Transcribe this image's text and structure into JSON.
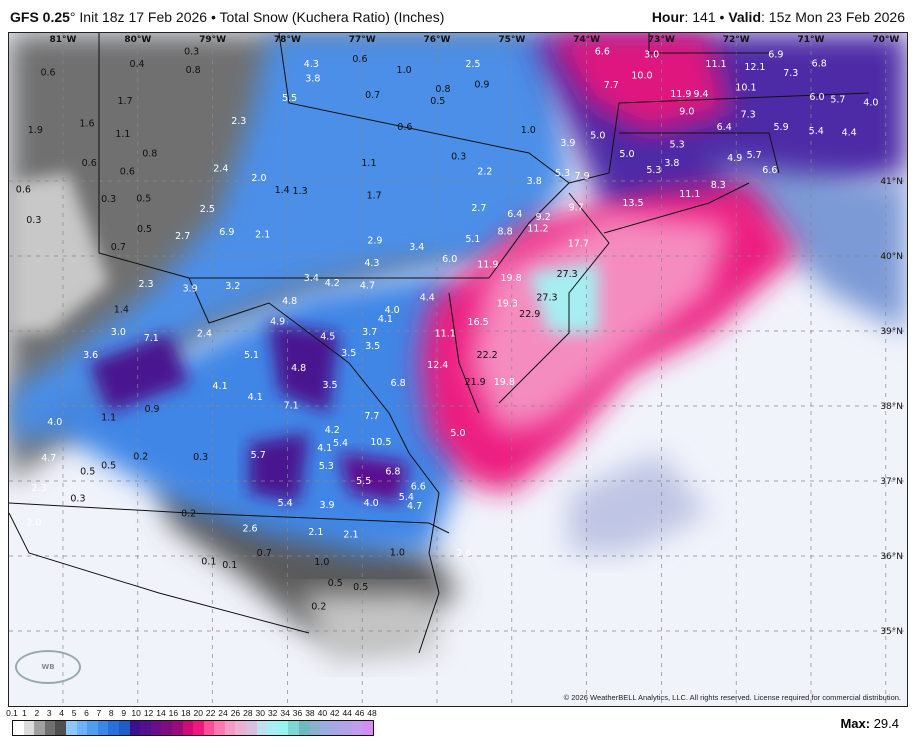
{
  "header": {
    "model": "GFS 0.25",
    "init": "° Init 18z 17 Feb 2026 • Total Snow (Kuchera Ratio) (Inches)",
    "hour_label": "Hour",
    "hour": ": 141 • ",
    "valid_label": "Valid",
    "valid": ": 15z Mon 23 Feb 2026"
  },
  "copyright": "© 2026 WeatherBELL Analytics, LLC. All rights reserved. License required for commercial distribution.",
  "logo": "WEATHERBELL",
  "max_label": "Max:",
  "max_value": "29.4",
  "colorbar": {
    "ticks": [
      "0.1",
      "1",
      "2",
      "3",
      "4",
      "5",
      "6",
      "7",
      "8",
      "9",
      "10",
      "12",
      "14",
      "16",
      "18",
      "20",
      "22",
      "24",
      "26",
      "28",
      "30",
      "32",
      "34",
      "36",
      "38",
      "40",
      "42",
      "44",
      "46",
      "48"
    ],
    "colors": [
      "#ffffff",
      "#dcdcdc",
      "#a0a0a0",
      "#707070",
      "#505050",
      "#8ec8f8",
      "#6fb2f5",
      "#4f9ef0",
      "#3a86ea",
      "#2a6fe0",
      "#1f5bc9",
      "#3d0f8f",
      "#52108f",
      "#6a0f8a",
      "#7e0d7f",
      "#9a0a7a",
      "#d00a78",
      "#f0157f",
      "#ff4d98",
      "#ff78b0",
      "#f59ac2",
      "#eeb0d0",
      "#d8bfe0",
      "#bfe0ec",
      "#a8eef4",
      "#96f6ef",
      "#7ed8d2",
      "#72b8c0",
      "#8cb0d0",
      "#9caee0",
      "#a8a6e4",
      "#b4a2e6",
      "#c39ceb",
      "#d28cf3"
    ]
  },
  "lon_labels": [
    "81°W",
    "80°W",
    "79°W",
    "78°W",
    "77°W",
    "76°W",
    "75°W",
    "74°W",
    "73°W",
    "72°W",
    "71°W",
    "70°W"
  ],
  "lat_labels": [
    "41°N",
    "40°N",
    "39°N",
    "38°N",
    "37°N",
    "36°N",
    "35°N"
  ],
  "snow_labels": [
    {
      "v": "0.6",
      "lon": 81.2,
      "lat": 42.45
    },
    {
      "v": "0.4",
      "lon": 80.01,
      "lat": 42.56
    },
    {
      "v": "0.3",
      "lon": 79.28,
      "lat": 42.73
    },
    {
      "v": "0.8",
      "lon": 79.26,
      "lat": 42.48
    },
    {
      "v": "4.3",
      "lon": 77.68,
      "lat": 42.56
    },
    {
      "v": "3.8",
      "lon": 77.66,
      "lat": 42.37
    },
    {
      "v": "0.6",
      "lon": 77.03,
      "lat": 42.63
    },
    {
      "v": "1.0",
      "lon": 76.44,
      "lat": 42.48
    },
    {
      "v": "2.5",
      "lon": 75.52,
      "lat": 42.56
    },
    {
      "v": "0.9",
      "lon": 75.4,
      "lat": 42.29
    },
    {
      "v": "0.8",
      "lon": 75.92,
      "lat": 42.23
    },
    {
      "v": "0.5",
      "lon": 75.99,
      "lat": 42.07
    },
    {
      "v": "0.7",
      "lon": 76.86,
      "lat": 42.15
    },
    {
      "v": "5.5",
      "lon": 77.97,
      "lat": 42.11
    },
    {
      "v": "1.7",
      "lon": 80.17,
      "lat": 42.07
    },
    {
      "v": "6.6",
      "lon": 73.79,
      "lat": 42.73
    },
    {
      "v": "3.0",
      "lon": 73.13,
      "lat": 42.69
    },
    {
      "v": "11.1",
      "lon": 72.27,
      "lat": 42.56
    },
    {
      "v": "12.1",
      "lon": 71.75,
      "lat": 42.52
    },
    {
      "v": "6.9",
      "lon": 71.47,
      "lat": 42.69
    },
    {
      "v": "6.8",
      "lon": 70.89,
      "lat": 42.57
    },
    {
      "v": "7.3",
      "lon": 71.27,
      "lat": 42.44
    },
    {
      "v": "10.0",
      "lon": 73.26,
      "lat": 42.41
    },
    {
      "v": "7.7",
      "lon": 73.67,
      "lat": 42.28
    },
    {
      "v": "11.9",
      "lon": 72.74,
      "lat": 42.16
    },
    {
      "v": "9.4",
      "lon": 72.47,
      "lat": 42.16
    },
    {
      "v": "10.1",
      "lon": 71.87,
      "lat": 42.25
    },
    {
      "v": "6.0",
      "lon": 70.92,
      "lat": 42.12
    },
    {
      "v": "5.7",
      "lon": 70.64,
      "lat": 42.09
    },
    {
      "v": "4.0",
      "lon": 70.2,
      "lat": 42.05
    },
    {
      "v": "9.0",
      "lon": 72.66,
      "lat": 41.93
    },
    {
      "v": "7.3",
      "lon": 71.84,
      "lat": 41.89
    },
    {
      "v": "6.4",
      "lon": 72.16,
      "lat": 41.72
    },
    {
      "v": "5.9",
      "lon": 71.4,
      "lat": 41.72
    },
    {
      "v": "5.4",
      "lon": 70.93,
      "lat": 41.67
    },
    {
      "v": "4.4",
      "lon": 70.49,
      "lat": 41.65
    },
    {
      "v": "1.9",
      "lon": 81.37,
      "lat": 41.68
    },
    {
      "v": "1.6",
      "lon": 80.68,
      "lat": 41.77
    },
    {
      "v": "1.1",
      "lon": 80.2,
      "lat": 41.63
    },
    {
      "v": "0.8",
      "lon": 79.84,
      "lat": 41.37
    },
    {
      "v": "0.6",
      "lon": 80.65,
      "lat": 41.24
    },
    {
      "v": "0.6",
      "lon": 80.14,
      "lat": 41.13
    },
    {
      "v": "0.6",
      "lon": 81.53,
      "lat": 40.89
    },
    {
      "v": "2.3",
      "lon": 78.65,
      "lat": 41.8
    },
    {
      "v": "0.6",
      "lon": 76.43,
      "lat": 41.72
    },
    {
      "v": "1.0",
      "lon": 74.78,
      "lat": 41.68
    },
    {
      "v": "3.9",
      "lon": 74.25,
      "lat": 41.51
    },
    {
      "v": "5.0",
      "lon": 73.85,
      "lat": 41.61
    },
    {
      "v": "5.3",
      "lon": 72.79,
      "lat": 41.49
    },
    {
      "v": "5.0",
      "lon": 73.46,
      "lat": 41.36
    },
    {
      "v": "5.3",
      "lon": 73.1,
      "lat": 41.15
    },
    {
      "v": "3.8",
      "lon": 72.86,
      "lat": 41.24
    },
    {
      "v": "4.9",
      "lon": 72.02,
      "lat": 41.31
    },
    {
      "v": "5.7",
      "lon": 71.76,
      "lat": 41.35
    },
    {
      "v": "6.6",
      "lon": 71.55,
      "lat": 41.15
    },
    {
      "v": "8.3",
      "lon": 72.24,
      "lat": 40.95
    },
    {
      "v": "11.1",
      "lon": 72.62,
      "lat": 40.83
    },
    {
      "v": "13.5",
      "lon": 73.38,
      "lat": 40.71
    },
    {
      "v": "9.7",
      "lon": 74.14,
      "lat": 40.65
    },
    {
      "v": "7.9",
      "lon": 74.06,
      "lat": 41.07
    },
    {
      "v": "5.3",
      "lon": 74.32,
      "lat": 41.11
    },
    {
      "v": "3.8",
      "lon": 74.7,
      "lat": 41.0
    },
    {
      "v": "2.2",
      "lon": 75.36,
      "lat": 41.13
    },
    {
      "v": "0.3",
      "lon": 75.71,
      "lat": 41.33
    },
    {
      "v": "2.4",
      "lon": 78.89,
      "lat": 41.17
    },
    {
      "v": "2.0",
      "lon": 78.38,
      "lat": 41.04
    },
    {
      "v": "1.4",
      "lon": 78.07,
      "lat": 40.88
    },
    {
      "v": "1.3",
      "lon": 77.83,
      "lat": 40.87
    },
    {
      "v": "1.1",
      "lon": 76.91,
      "lat": 41.24
    },
    {
      "v": "1.7",
      "lon": 76.84,
      "lat": 40.81
    },
    {
      "v": "0.3",
      "lon": 80.39,
      "lat": 40.76
    },
    {
      "v": "0.5",
      "lon": 79.92,
      "lat": 40.77
    },
    {
      "v": "2.5",
      "lon": 79.07,
      "lat": 40.63
    },
    {
      "v": "0.5",
      "lon": 79.91,
      "lat": 40.36
    },
    {
      "v": "0.3",
      "lon": 81.39,
      "lat": 40.48
    },
    {
      "v": "0.7",
      "lon": 80.26,
      "lat": 40.12
    },
    {
      "v": "2.7",
      "lon": 79.4,
      "lat": 40.27
    },
    {
      "v": "6.9",
      "lon": 78.81,
      "lat": 40.32
    },
    {
      "v": "2.1",
      "lon": 78.33,
      "lat": 40.29
    },
    {
      "v": "2.7",
      "lon": 75.44,
      "lat": 40.64
    },
    {
      "v": "6.4",
      "lon": 74.96,
      "lat": 40.56
    },
    {
      "v": "8.8",
      "lon": 75.09,
      "lat": 40.33
    },
    {
      "v": "9.2",
      "lon": 74.58,
      "lat": 40.52
    },
    {
      "v": "11.2",
      "lon": 74.65,
      "lat": 40.37
    },
    {
      "v": "17.7",
      "lon": 74.11,
      "lat": 40.17
    },
    {
      "v": "2.9",
      "lon": 76.83,
      "lat": 40.21
    },
    {
      "v": "3.4",
      "lon": 76.27,
      "lat": 40.12
    },
    {
      "v": "4.3",
      "lon": 76.87,
      "lat": 39.91
    },
    {
      "v": "6.0",
      "lon": 75.83,
      "lat": 39.96
    },
    {
      "v": "5.1",
      "lon": 75.52,
      "lat": 40.23
    },
    {
      "v": "11.9",
      "lon": 75.32,
      "lat": 39.89
    },
    {
      "v": "19.8",
      "lon": 75.01,
      "lat": 39.71
    },
    {
      "v": "27.3",
      "lon": 74.26,
      "lat": 39.76
    },
    {
      "v": "4.2",
      "lon": 77.4,
      "lat": 39.64
    },
    {
      "v": "4.7",
      "lon": 76.93,
      "lat": 39.61
    },
    {
      "v": "3.4",
      "lon": 77.68,
      "lat": 39.71
    },
    {
      "v": "2.3",
      "lon": 79.89,
      "lat": 39.63
    },
    {
      "v": "3.9",
      "lon": 79.3,
      "lat": 39.57
    },
    {
      "v": "3.2",
      "lon": 78.73,
      "lat": 39.6
    },
    {
      "v": "4.8",
      "lon": 77.97,
      "lat": 39.4
    },
    {
      "v": "4.4",
      "lon": 76.13,
      "lat": 39.45
    },
    {
      "v": "1.4",
      "lon": 80.22,
      "lat": 39.29
    },
    {
      "v": "3.0",
      "lon": 80.26,
      "lat": 38.99
    },
    {
      "v": "7.1",
      "lon": 79.82,
      "lat": 38.91
    },
    {
      "v": "2.4",
      "lon": 79.11,
      "lat": 38.97
    },
    {
      "v": "4.9",
      "lon": 78.13,
      "lat": 39.13
    },
    {
      "v": "4.0",
      "lon": 76.6,
      "lat": 39.28
    },
    {
      "v": "4.1",
      "lon": 76.69,
      "lat": 39.16
    },
    {
      "v": "4.5",
      "lon": 77.46,
      "lat": 38.93
    },
    {
      "v": "3.7",
      "lon": 76.9,
      "lat": 38.99
    },
    {
      "v": "3.5",
      "lon": 76.86,
      "lat": 38.8
    },
    {
      "v": "3.5",
      "lon": 77.18,
      "lat": 38.71
    },
    {
      "v": "19.3",
      "lon": 75.06,
      "lat": 39.37
    },
    {
      "v": "27.3",
      "lon": 74.53,
      "lat": 39.45
    },
    {
      "v": "22.9",
      "lon": 74.76,
      "lat": 39.23
    },
    {
      "v": "16.5",
      "lon": 75.45,
      "lat": 39.12
    },
    {
      "v": "11.1",
      "lon": 75.89,
      "lat": 38.97
    },
    {
      "v": "22.2",
      "lon": 75.33,
      "lat": 38.68
    },
    {
      "v": "12.4",
      "lon": 75.99,
      "lat": 38.55
    },
    {
      "v": "21.9",
      "lon": 75.49,
      "lat": 38.32
    },
    {
      "v": "19.8",
      "lon": 75.1,
      "lat": 38.32
    },
    {
      "v": "6.8",
      "lon": 76.52,
      "lat": 38.31
    },
    {
      "v": "3.6",
      "lon": 80.63,
      "lat": 38.68
    },
    {
      "v": "5.1",
      "lon": 78.48,
      "lat": 38.68
    },
    {
      "v": "4.8",
      "lon": 77.85,
      "lat": 38.51
    },
    {
      "v": "3.5",
      "lon": 77.43,
      "lat": 38.28
    },
    {
      "v": "4.1",
      "lon": 78.9,
      "lat": 38.27
    },
    {
      "v": "4.1",
      "lon": 78.43,
      "lat": 38.12
    },
    {
      "v": "7.1",
      "lon": 77.95,
      "lat": 38.01
    },
    {
      "v": "0.9",
      "lon": 79.81,
      "lat": 37.96
    },
    {
      "v": "1.1",
      "lon": 80.39,
      "lat": 37.85
    },
    {
      "v": "4.0",
      "lon": 81.11,
      "lat": 37.79
    },
    {
      "v": "7.7",
      "lon": 76.87,
      "lat": 37.87
    },
    {
      "v": "4.2",
      "lon": 77.4,
      "lat": 37.68
    },
    {
      "v": "5.4",
      "lon": 77.29,
      "lat": 37.51
    },
    {
      "v": "10.5",
      "lon": 76.75,
      "lat": 37.52
    },
    {
      "v": "5.0",
      "lon": 75.72,
      "lat": 37.64
    },
    {
      "v": "0.2",
      "lon": 79.96,
      "lat": 37.33
    },
    {
      "v": "0.3",
      "lon": 79.16,
      "lat": 37.32
    },
    {
      "v": "0.5",
      "lon": 80.39,
      "lat": 37.21
    },
    {
      "v": "4.7",
      "lon": 81.19,
      "lat": 37.31
    },
    {
      "v": "5.7",
      "lon": 78.39,
      "lat": 37.35
    },
    {
      "v": "4.1",
      "lon": 77.5,
      "lat": 37.44
    },
    {
      "v": "5.3",
      "lon": 77.48,
      "lat": 37.2
    },
    {
      "v": "6.8",
      "lon": 76.59,
      "lat": 37.13
    },
    {
      "v": "0.5",
      "lon": 80.67,
      "lat": 37.13
    },
    {
      "v": "5.5",
      "lon": 76.98,
      "lat": 37.0
    },
    {
      "v": "6.6",
      "lon": 76.25,
      "lat": 36.93
    },
    {
      "v": "0.3",
      "lon": 80.8,
      "lat": 36.77
    },
    {
      "v": "2.3",
      "lon": 81.32,
      "lat": 36.91
    },
    {
      "v": "5.4",
      "lon": 76.41,
      "lat": 36.79
    },
    {
      "v": "4.7",
      "lon": 76.3,
      "lat": 36.67
    },
    {
      "v": "5.4",
      "lon": 78.03,
      "lat": 36.71
    },
    {
      "v": "3.9",
      "lon": 77.47,
      "lat": 36.68
    },
    {
      "v": "4.0",
      "lon": 76.88,
      "lat": 36.71
    },
    {
      "v": "0.2",
      "lon": 79.32,
      "lat": 36.57
    },
    {
      "v": "2.0",
      "lon": 81.39,
      "lat": 36.45
    },
    {
      "v": "2.6",
      "lon": 78.5,
      "lat": 36.37
    },
    {
      "v": "2.1",
      "lon": 77.62,
      "lat": 36.32
    },
    {
      "v": "2.1",
      "lon": 77.15,
      "lat": 36.29
    },
    {
      "v": "1.0",
      "lon": 76.53,
      "lat": 36.05
    },
    {
      "v": "2.6",
      "lon": 75.64,
      "lat": 36.04
    },
    {
      "v": "0.7",
      "lon": 78.31,
      "lat": 36.04
    },
    {
      "v": "0.1",
      "lon": 79.05,
      "lat": 35.93
    },
    {
      "v": "0.1",
      "lon": 78.77,
      "lat": 35.88
    },
    {
      "v": "1.0",
      "lon": 77.54,
      "lat": 35.92
    },
    {
      "v": "0.5",
      "lon": 77.36,
      "lat": 35.64
    },
    {
      "v": "0.5",
      "lon": 77.02,
      "lat": 35.59
    },
    {
      "v": "0.2",
      "lon": 77.58,
      "lat": 35.33
    }
  ]
}
